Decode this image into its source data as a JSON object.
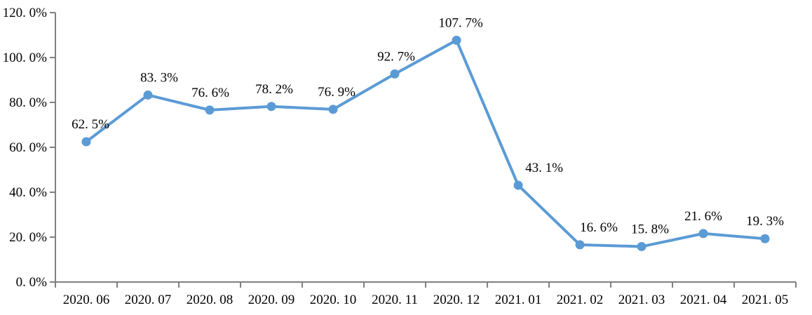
{
  "page": {
    "background": "#ffffff"
  },
  "chart_data": {
    "type": "line",
    "title": "",
    "subtitle": "",
    "legend": "none",
    "grid": false,
    "categories": [
      "2020.06",
      "2020.07",
      "2020.08",
      "2020.09",
      "2020.10",
      "2020.11",
      "2020.12",
      "2021.01",
      "2021.02",
      "2021.03",
      "2021.04",
      "2021.05"
    ],
    "values": [
      62.5,
      83.3,
      76.6,
      78.2,
      76.9,
      92.7,
      107.7,
      43.1,
      16.6,
      15.8,
      21.6,
      19.3
    ],
    "data_labels": [
      "62. 5%",
      "83. 3%",
      "76. 6%",
      "78. 2%",
      "76. 9%",
      "92. 7%",
      "107. 7%",
      "43. 1%",
      "16. 6%",
      "15. 8%",
      "21. 6%",
      "19. 3%"
    ],
    "x_tick_labels": [
      "2020. 06",
      "2020. 07",
      "2020. 08",
      "2020. 09",
      "2020. 10",
      "2020. 11",
      "2020. 12",
      "2021. 01",
      "2021. 02",
      "2021. 03",
      "2021. 04",
      "2021. 05"
    ],
    "xlabel": "",
    "ylabel": "",
    "y_axis": {
      "min": 0,
      "max": 120,
      "step": 20,
      "tick_labels": [
        "0. 0%",
        "20. 0%",
        "40. 0%",
        "60. 0%",
        "80. 0%",
        "100. 0%",
        "120. 0%"
      ]
    },
    "colors": {
      "line": "#5B9BD5",
      "marker": "#5B9BD5",
      "axis": "#808080",
      "text": "#000000"
    }
  }
}
